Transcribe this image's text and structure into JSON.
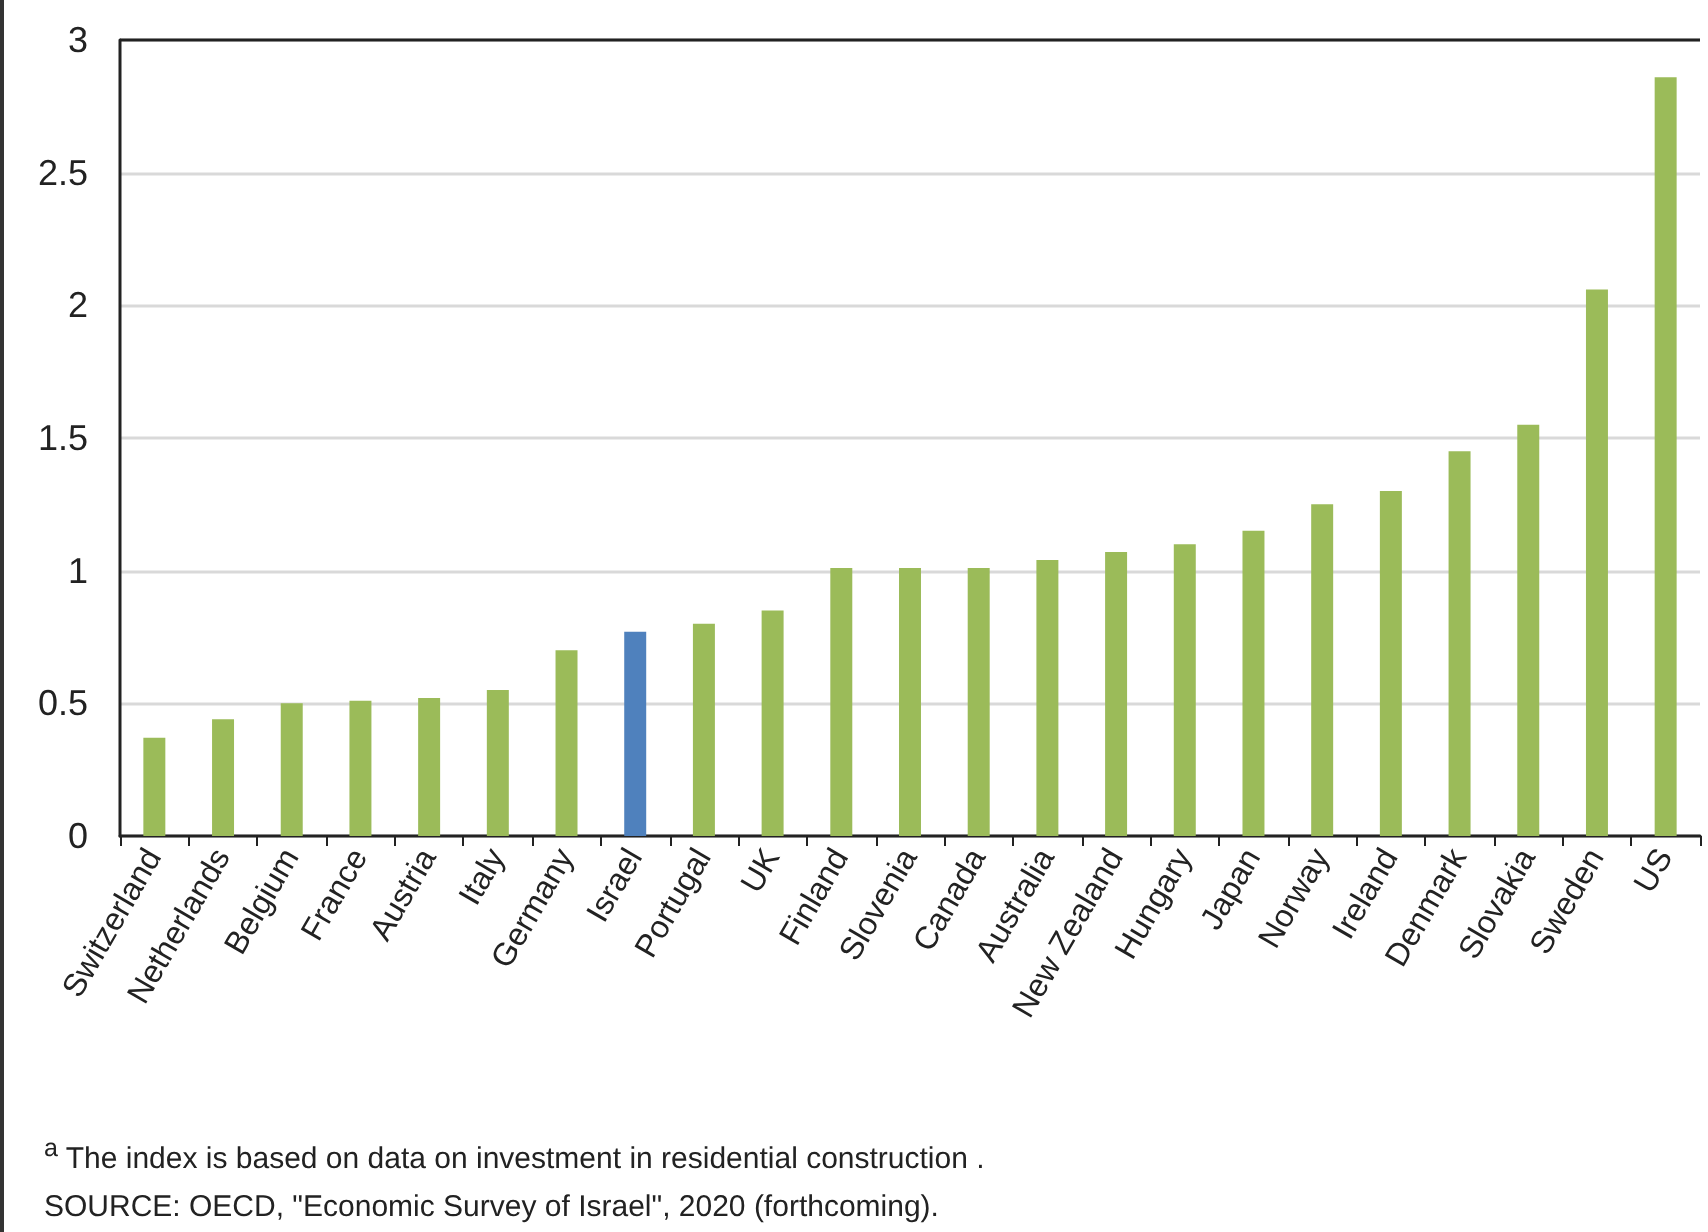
{
  "chart_data": {
    "type": "bar",
    "categories": [
      "Switzerland",
      "Netherlands",
      "Belgium",
      "France",
      "Austria",
      "Italy",
      "Germany",
      "Israel",
      "Portugal",
      "UK",
      "Finland",
      "Slovenia",
      "Canada",
      "Australia",
      "New Zealand",
      "Hungary",
      "Japan",
      "Norway",
      "Ireland",
      "Denmark",
      "Slovakia",
      "Sweden",
      "US"
    ],
    "values": [
      0.37,
      0.44,
      0.5,
      0.51,
      0.52,
      0.55,
      0.7,
      0.77,
      0.8,
      0.85,
      1.01,
      1.01,
      1.01,
      1.04,
      1.07,
      1.1,
      1.15,
      1.25,
      1.3,
      1.45,
      1.55,
      2.06,
      2.86
    ],
    "colors": [
      "#9bbb59",
      "#9bbb59",
      "#9bbb59",
      "#9bbb59",
      "#9bbb59",
      "#9bbb59",
      "#9bbb59",
      "#4f81bd",
      "#9bbb59",
      "#9bbb59",
      "#9bbb59",
      "#9bbb59",
      "#9bbb59",
      "#9bbb59",
      "#9bbb59",
      "#9bbb59",
      "#9bbb59",
      "#9bbb59",
      "#9bbb59",
      "#9bbb59",
      "#9bbb59",
      "#9bbb59",
      "#9bbb59"
    ],
    "ylim": [
      0,
      3
    ],
    "yticks": [
      0,
      0.5,
      1,
      1.5,
      2,
      2.5,
      3
    ],
    "grid": "y",
    "annotations": [
      "$^{a}$ The index is based on data on investment in residential construction .",
      "SOURCE: OECD, \"Economic Survey of Israel\", 2020 (forthcoming)."
    ]
  }
}
